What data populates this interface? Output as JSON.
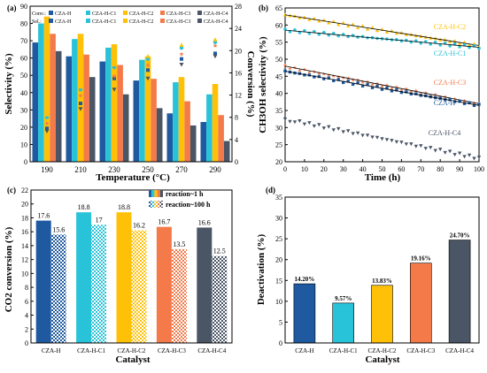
{
  "colors": {
    "CZA-H": "#1f5aa0",
    "CZA-H-C1": "#29c3d9",
    "CZA-H-C2": "#ffc107",
    "CZA-H-C3": "#f47a4a",
    "CZA-H-C4": "#4a5566",
    "axis": "#000000"
  },
  "chart_data": [
    {
      "panel": "(a)",
      "type": "bar",
      "xlabel": "Temperature (°C)",
      "ylabel": "Selectivity (%)",
      "y2label": "Conversion (%)",
      "ylim": [
        0,
        90
      ],
      "y2lim": [
        0,
        28
      ],
      "yticks": [
        0,
        10,
        20,
        30,
        40,
        50,
        60,
        70,
        80,
        90
      ],
      "y2ticks": [
        0,
        4,
        8,
        12,
        16,
        20,
        24,
        28
      ],
      "categories": [
        "190",
        "210",
        "230",
        "250",
        "270",
        "290"
      ],
      "legend_conv_label": "Conv.:",
      "legend_sel_label": "Sel.:",
      "series": [
        {
          "name": "CZA-H",
          "selectivity": [
            69,
            61,
            58,
            47,
            28,
            23
          ],
          "conversion": [
            6,
            10.5,
            15,
            16.5,
            18.5,
            19.5
          ]
        },
        {
          "name": "CZA-H-C1",
          "selectivity": [
            80,
            71,
            66,
            59,
            46,
            39
          ],
          "conversion": [
            8,
            13,
            17,
            18.5,
            20.5,
            21.5
          ]
        },
        {
          "name": "CZA-H-C2",
          "selectivity": [
            84,
            74,
            68,
            61,
            49,
            45
          ],
          "conversion": [
            8.5,
            13.5,
            17.5,
            19,
            21,
            22
          ]
        },
        {
          "name": "CZA-H-C3",
          "selectivity": [
            74,
            62,
            56,
            48,
            35,
            27
          ],
          "conversion": [
            7,
            12,
            15.5,
            17.5,
            19.5,
            21
          ]
        },
        {
          "name": "CZA-H-C4",
          "selectivity": [
            64,
            49,
            39,
            31,
            21,
            12
          ],
          "conversion": [
            5.5,
            9.5,
            13,
            15,
            17.5,
            19
          ]
        }
      ]
    },
    {
      "panel": "(b)",
      "type": "line",
      "xlabel": "Time (h)",
      "ylabel": "CH3OH selectivity (%)",
      "xlim": [
        0,
        100
      ],
      "ylim": [
        20,
        65
      ],
      "xticks": [
        0,
        10,
        20,
        30,
        40,
        50,
        60,
        70,
        80,
        90,
        100
      ],
      "yticks": [
        20,
        25,
        30,
        35,
        40,
        45,
        50,
        55,
        60,
        65
      ],
      "series": [
        {
          "name": "CZA-H-C2",
          "start": 63,
          "end": 54,
          "fit": true
        },
        {
          "name": "CZA-H-C1",
          "start": 58.5,
          "end": 53.5,
          "fit": true
        },
        {
          "name": "CZA-H-C3",
          "start": 48,
          "end": 37,
          "fit": true
        },
        {
          "name": "CZA-H",
          "start": 46.5,
          "end": 36.5,
          "fit": true
        },
        {
          "name": "CZA-H-C4",
          "start": 32.5,
          "end": 21,
          "fit": false
        }
      ]
    },
    {
      "panel": "(c)",
      "type": "bar",
      "xlabel": "Catalyst",
      "ylabel": "CO2 conversion (%)",
      "ylim": [
        0,
        22
      ],
      "yticks": [
        0,
        2,
        4,
        6,
        8,
        10,
        12,
        14,
        16,
        18,
        20,
        22
      ],
      "categories": [
        "CZA-H",
        "CZA-H-C1",
        "CZA-H-C2",
        "CZA-H-C3",
        "CZA-H-C4"
      ],
      "series": [
        {
          "name": "reaction~1 h",
          "values": [
            17.6,
            18.8,
            18.8,
            16.7,
            16.6
          ],
          "labels": [
            "17.6",
            "18.8",
            "18.8",
            "16.7",
            "16.6"
          ]
        },
        {
          "name": "reaction~100 h",
          "values": [
            15.6,
            17.0,
            16.2,
            13.5,
            12.5
          ],
          "labels": [
            "15.6",
            "17",
            "16.2",
            "13.5",
            "12.5"
          ]
        }
      ]
    },
    {
      "panel": "(d)",
      "type": "bar",
      "xlabel": "Catalyst",
      "ylabel": "Deactivation (%)",
      "ylim": [
        0,
        35
      ],
      "yticks": [
        0,
        5,
        10,
        15,
        20,
        25,
        30,
        35
      ],
      "categories": [
        "CZA-H",
        "CZA-H-C1",
        "CZA-H-C2",
        "CZA-H-C3",
        "CZA-H-C4"
      ],
      "values": [
        14.2,
        9.57,
        13.83,
        19.16,
        24.7
      ],
      "labels": [
        "14.20%",
        "9.57%",
        "13.83%",
        "19.16%",
        "24.70%"
      ]
    }
  ]
}
